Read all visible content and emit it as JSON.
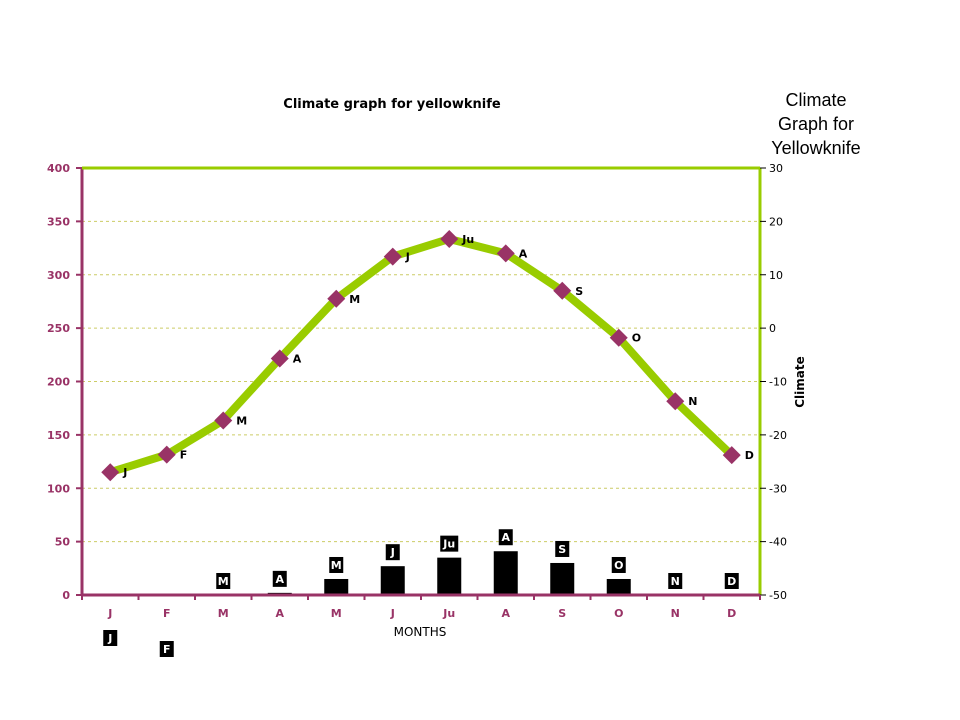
{
  "side_title": [
    "Climate",
    "Graph for",
    "Yellowknife"
  ],
  "chart_data": {
    "type": "bar+line",
    "title": "Climate graph for yellowknife",
    "xlabel": "MONTHS",
    "ylabel": "",
    "y2label": "Climate",
    "categories": [
      "J",
      "F",
      "M",
      "A",
      "M",
      "J",
      "Ju",
      "A",
      "S",
      "O",
      "N",
      "D"
    ],
    "bar_labels": [
      "J",
      "F",
      "M",
      "A",
      "M",
      "J",
      "Ju",
      "A",
      "S",
      "O",
      "N",
      "D"
    ],
    "line_labels": [
      "J",
      "F",
      "M",
      "A",
      "M",
      "J",
      "Ju",
      "A",
      "S",
      "O",
      "N",
      "D"
    ],
    "series": [
      {
        "values": [
          0,
          0,
          0,
          2,
          15,
          27,
          35,
          41,
          30,
          15,
          0,
          0
        ],
        "axis": "left",
        "kind": "bar",
        "color": "#000000"
      },
      {
        "values": [
          -27,
          -23.7,
          -17.3,
          -5.7,
          5.5,
          13.4,
          16.7,
          14,
          7,
          -1.8,
          -13.7,
          -23.8
        ],
        "axis": "right",
        "kind": "line",
        "color": "#99cc00",
        "marker_color": "#993366"
      }
    ],
    "ylim": [
      0,
      400
    ],
    "y2lim": [
      -50,
      30
    ],
    "yticks": [
      0,
      50,
      100,
      150,
      200,
      250,
      300,
      350,
      400
    ],
    "y2ticks": [
      -50,
      -40,
      -30,
      -20,
      -10,
      0,
      10,
      20,
      30
    ],
    "grid": true,
    "colors": {
      "axis": "#993366",
      "right_axis": "#99cc00",
      "grid": "#cccc66"
    }
  }
}
